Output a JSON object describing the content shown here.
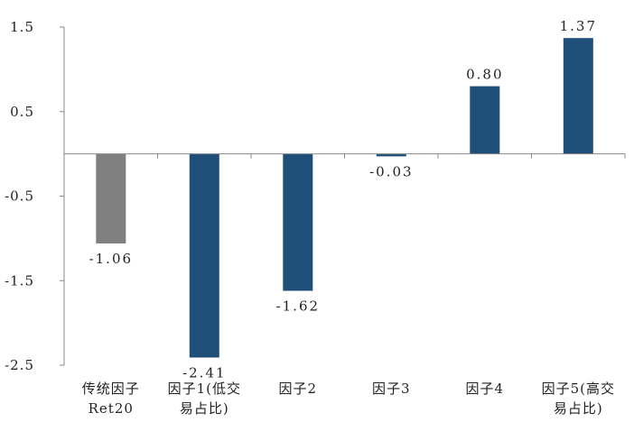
{
  "chart_data": {
    "type": "bar",
    "title": "",
    "xlabel": "",
    "ylabel": "",
    "ylim": [
      -2.5,
      1.5
    ],
    "yticks": [
      1.5,
      0.5,
      -0.5,
      -1.5,
      -2.5
    ],
    "ytick_labels": [
      "1.5",
      "0.5",
      "-0.5",
      "-1.5",
      "-2.5"
    ],
    "grid": false,
    "categories": [
      [
        "传统因子",
        "Ret20"
      ],
      [
        "因子1(低交",
        "易占比)"
      ],
      [
        "因子2"
      ],
      [
        "因子3"
      ],
      [
        "因子4"
      ],
      [
        "因子5(高交",
        "易占比)"
      ]
    ],
    "values": [
      -1.06,
      -2.41,
      -1.62,
      -0.03,
      0.8,
      1.37
    ],
    "data_labels": [
      "-1.06",
      "-2.41",
      "-1.62",
      "-0.03",
      "0.80",
      "1.37"
    ],
    "bar_colors": [
      "#808080",
      "#1f4e79",
      "#1f4e79",
      "#1f4e79",
      "#1f4e79",
      "#1f4e79"
    ]
  }
}
